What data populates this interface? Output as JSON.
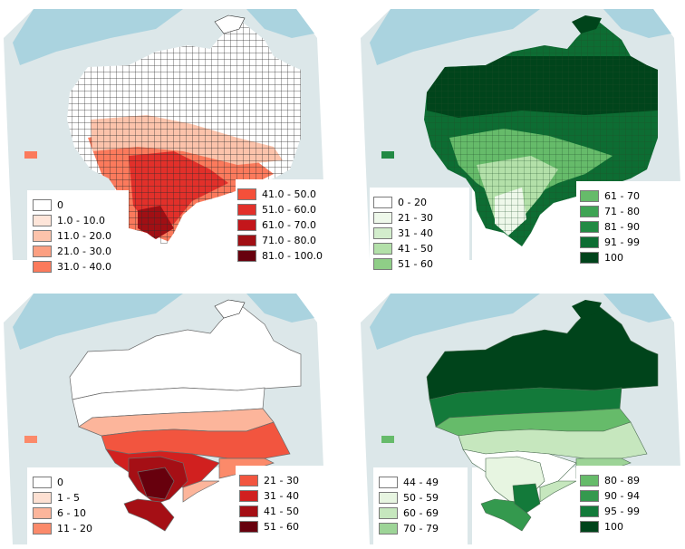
{
  "maps": [
    {
      "id": "top-left",
      "legend": {
        "left": [
          {
            "label": "0",
            "color": "#ffffff"
          },
          {
            "label": "1.0 - 10.0",
            "color": "#fee5d9"
          },
          {
            "label": "11.0 - 20.0",
            "color": "#fcc3ab"
          },
          {
            "label": "21.0 - 30.0",
            "color": "#fc9f81"
          },
          {
            "label": "31.0 - 40.0",
            "color": "#fb7a5c"
          }
        ],
        "right": [
          {
            "label": "41.0 - 50.0",
            "color": "#f4503a"
          },
          {
            "label": "51.0 - 60.0",
            "color": "#e2302a"
          },
          {
            "label": "61.0 - 70.0",
            "color": "#c3161b"
          },
          {
            "label": "71.0 - 80.0",
            "color": "#a10f14"
          },
          {
            "label": "81.0 - 100.0",
            "color": "#67000d"
          }
        ]
      }
    },
    {
      "id": "top-right",
      "legend": {
        "left": [
          {
            "label": "0 - 20",
            "color": "#ffffff"
          },
          {
            "label": "21 - 30",
            "color": "#eef8ea"
          },
          {
            "label": "31 - 40",
            "color": "#d3edcc"
          },
          {
            "label": "41 - 50",
            "color": "#b3e0a9"
          },
          {
            "label": "51 - 60",
            "color": "#8fce87"
          }
        ],
        "right": [
          {
            "label": "61 - 70",
            "color": "#66bb6a"
          },
          {
            "label": "71 - 80",
            "color": "#3fa454"
          },
          {
            "label": "81 - 90",
            "color": "#228a44"
          },
          {
            "label": "91 - 99",
            "color": "#0d6d33"
          },
          {
            "label": "100",
            "color": "#00441b"
          }
        ]
      }
    },
    {
      "id": "bottom-left",
      "legend": {
        "left": [
          {
            "label": "0",
            "color": "#ffffff"
          },
          {
            "label": "1 - 5",
            "color": "#fde0d2"
          },
          {
            "label": "6 - 10",
            "color": "#fcb59b"
          },
          {
            "label": "11 - 20",
            "color": "#fb8a6a"
          }
        ],
        "right": [
          {
            "label": "21 - 30",
            "color": "#f2553f"
          },
          {
            "label": "31 - 40",
            "color": "#d1201f"
          },
          {
            "label": "41 - 50",
            "color": "#a50f15"
          },
          {
            "label": "51 - 60",
            "color": "#67000d"
          }
        ]
      }
    },
    {
      "id": "bottom-right",
      "legend": {
        "left": [
          {
            "label": "44 - 49",
            "color": "#ffffff"
          },
          {
            "label": "50 - 59",
            "color": "#e7f5e1"
          },
          {
            "label": "60 - 69",
            "color": "#c6e7be"
          },
          {
            "label": "70 - 79",
            "color": "#9dd497"
          }
        ],
        "right": [
          {
            "label": "80 - 89",
            "color": "#66bb6a"
          },
          {
            "label": "90 - 94",
            "color": "#34994e"
          },
          {
            "label": "95 - 99",
            "color": "#137a3a"
          },
          {
            "label": "100",
            "color": "#00441b"
          }
        ]
      }
    }
  ]
}
